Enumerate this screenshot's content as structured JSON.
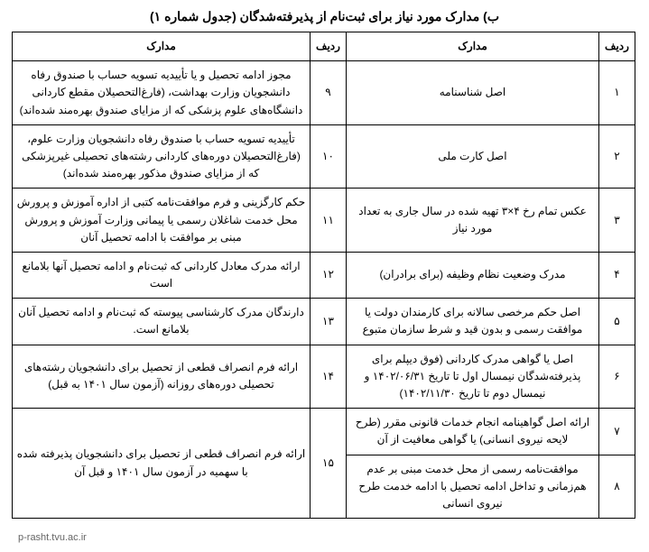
{
  "title": "ب) مدارک مورد نیاز برای ثبت‌نام از پذیرفته‌شدگان (جدول شماره ۱)",
  "headers": {
    "radif": "ردیف",
    "madarek": "مدارک"
  },
  "rows": [
    {
      "radif1": "۱",
      "madarek1": "اصل شناسنامه",
      "radif2": "۹",
      "madarek2": "مجوز ادامه تحصیل و یا تأییدیه تسویه حساب با صندوق رفاه دانشجویان وزارت بهداشت، (فارغ‌التحصیلان مقطع کاردانی دانشگاه‌های علوم پزشکی که از مزایای صندوق بهره‌مند شده‌اند)"
    },
    {
      "radif1": "۲",
      "madarek1": "اصل کارت ملی",
      "radif2": "۱۰",
      "madarek2": "تأییدیه تسویه حساب با صندوق رفاه دانشجویان وزارت علوم، (فارغ‌التحصیلان دوره‌های کاردانی رشته‌های تحصیلی غیرپزشکی که از مزایای صندوق مذکور بهره‌مند شده‌اند)"
    },
    {
      "radif1": "۳",
      "madarek1": "عکس تمام رخ ۴×۳ تهیه شده در سال جاری به تعداد مورد نیاز",
      "radif2": "۱۱",
      "madarek2": "حکم کارگزینی و فرم موافقت‌نامه کتبی از اداره آموزش و پرورش محل خدمت شاغلان رسمی یا پیمانی وزارت آموزش و پرورش مبنی بر موافقت با ادامه تحصیل آنان"
    },
    {
      "radif1": "۴",
      "madarek1": "مدرک وضعیت نظام وظیفه (برای برادران)",
      "radif2": "۱۲",
      "madarek2": "ارائه مدرک معادل کاردانی که ثبت‌نام و ادامه تحصیل آنها بلامانع است"
    },
    {
      "radif1": "۵",
      "madarek1": "اصل حکم مرخصی سالانه برای کارمندان دولت یا موافقت رسمی و بدون قید و شرط سازمان متبوع",
      "radif2": "۱۳",
      "madarek2": "دارندگان مدرک کارشناسی پیوسته که ثبت‌نام و ادامه تحصیل آنان بلامانع است."
    },
    {
      "radif1": "۶",
      "madarek1": "اصل یا گواهی مدرک کاردانی (فوق دیپلم برای پذیرفته‌شدگان نیمسال اول تا تاریخ ۱۴۰۲/۰۶/۳۱ و نیمسال دوم تا تاریخ ۱۴۰۲/۱۱/۳۰)",
      "radif2": "۱۴",
      "madarek2": "ارائه فرم انصراف قطعی از تحصیل برای دانشجویان رشته‌های تحصیلی دوره‌های روزانه (آزمون سال ۱۴۰۱ به قبل)"
    },
    {
      "radif1": "۷",
      "madarek1": "ارائه اصل گواهینامه انجام خدمات قانونی مقرر (طرح لایحه نیروی انسانی) یا گواهی معافیت از آن",
      "radif2": "۱۵",
      "madarek2": "ارائه فرم انصراف قطعی از تحصیل برای دانشجویان پذیرفته شده با سهمیه در آزمون سال ۱۴۰۱ و قبل آن",
      "rowspan2": 2
    },
    {
      "radif1": "۸",
      "madarek1": "موافقت‌نامه رسمی از محل خدمت مبنی بر عدم هم‌زمانی و تداخل ادامه تحصیل با ادامه خدمت طرح نیروی انسانی"
    }
  ],
  "footer_url": "p-rasht.tvu.ac.ir"
}
